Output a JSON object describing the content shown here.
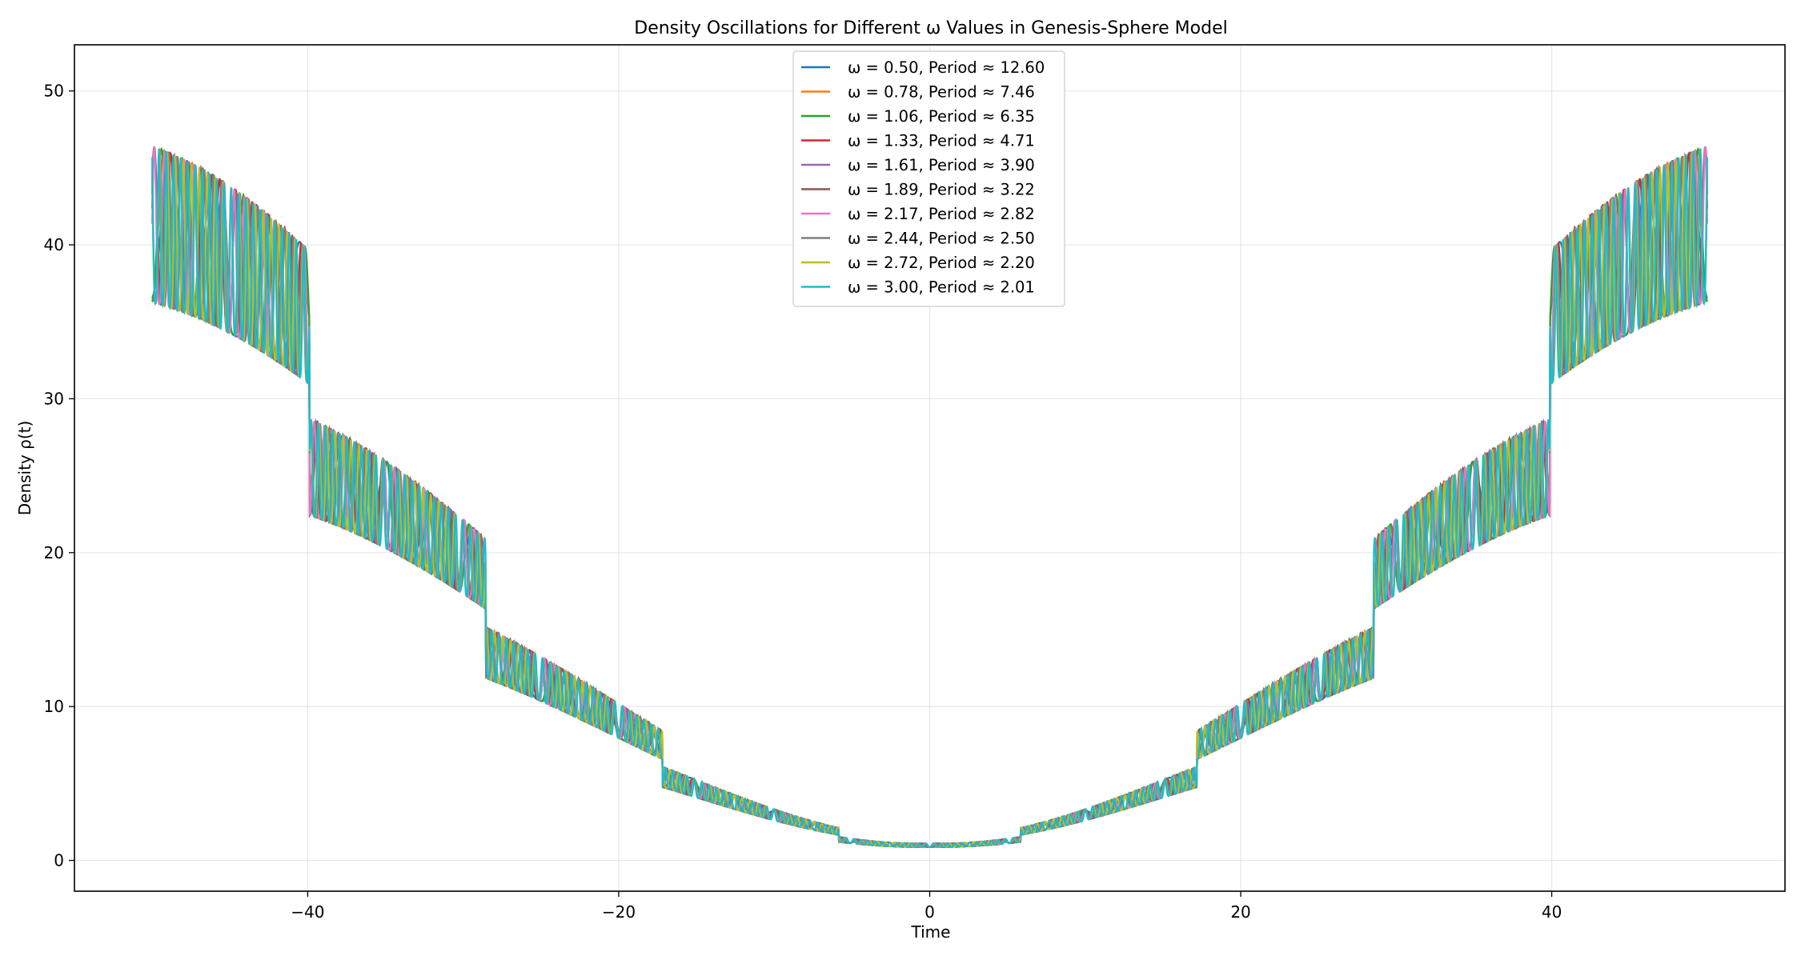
{
  "chart_data": {
    "type": "line",
    "title": "Density Oscillations for Different ω Values in Genesis-Sphere Model",
    "xlabel": "Time",
    "ylabel": "Density ρ(t)",
    "xlim": [
      -55,
      55
    ],
    "ylim": [
      -2,
      53
    ],
    "x_ticks": [
      -40,
      -20,
      0,
      20,
      40
    ],
    "x_tick_labels": [
      "−40",
      "−20",
      "0",
      "20",
      "40"
    ],
    "y_ticks": [
      0,
      10,
      20,
      30,
      40,
      50
    ],
    "y_tick_labels": [
      "0",
      "10",
      "20",
      "30",
      "40",
      "50"
    ],
    "grid": true,
    "legend_position": "upper-center",
    "x_range": [
      -50,
      50
    ],
    "series": [
      {
        "name": "ω = 0.50, Period ≈ 12.60",
        "omega": 0.5,
        "color": "#1f77b4"
      },
      {
        "name": "ω = 0.78, Period ≈ 7.46",
        "omega": 0.78,
        "color": "#ff7f0e"
      },
      {
        "name": "ω = 1.06, Period ≈ 6.35",
        "omega": 1.06,
        "color": "#2ca02c"
      },
      {
        "name": "ω = 1.33, Period ≈ 4.71",
        "omega": 1.33,
        "color": "#d62728"
      },
      {
        "name": "ω = 1.61, Period ≈ 3.90",
        "omega": 1.61,
        "color": "#9467bd"
      },
      {
        "name": "ω = 1.89, Period ≈ 3.22",
        "omega": 1.89,
        "color": "#8c564b"
      },
      {
        "name": "ω = 2.17, Period ≈ 2.82",
        "omega": 2.17,
        "color": "#e377c2"
      },
      {
        "name": "ω = 2.44, Period ≈ 2.50",
        "omega": 2.44,
        "color": "#7f7f7f"
      },
      {
        "name": "ω = 2.72, Period ≈ 2.20",
        "omega": 2.72,
        "color": "#bcbd22"
      },
      {
        "name": "ω = 3.00, Period ≈ 2.01",
        "omega": 3.0,
        "color": "#17becf"
      }
    ]
  }
}
